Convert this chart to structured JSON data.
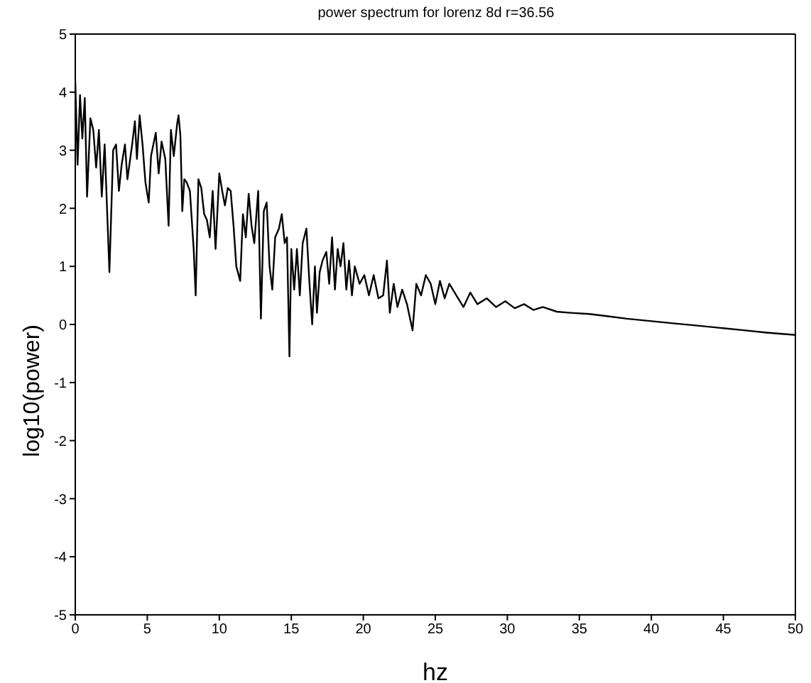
{
  "chart_data": {
    "type": "line",
    "title": "power spectrum for lorenz 8d r=36.56",
    "xlabel": "hz",
    "ylabel": "log10(power)",
    "xlim": [
      0,
      50
    ],
    "xticks": [
      0,
      5,
      10,
      15,
      20,
      25,
      30,
      35,
      40,
      45,
      50
    ],
    "ylim": [
      -5,
      5
    ],
    "yticks": [
      -5,
      -4,
      -3,
      -2,
      -1,
      0,
      1,
      2,
      3,
      4,
      5
    ],
    "grid": false,
    "legend": false,
    "marker": "none",
    "line_style": "solid",
    "series": [
      {
        "color": "#000000",
        "x": [
          0,
          0.16,
          0.33,
          0.49,
          0.66,
          0.82,
          1.05,
          1.25,
          1.45,
          1.64,
          1.84,
          2.04,
          2.37,
          2.63,
          2.83,
          3.03,
          3.22,
          3.45,
          3.62,
          3.95,
          4.14,
          4.28,
          4.47,
          4.67,
          4.87,
          5.1,
          5.26,
          5.59,
          5.79,
          5.99,
          6.25,
          6.48,
          6.64,
          6.84,
          7.07,
          7.17,
          7.3,
          7.43,
          7.57,
          7.73,
          7.96,
          8.22,
          8.36,
          8.55,
          8.75,
          8.95,
          9.14,
          9.34,
          9.54,
          9.74,
          10.0,
          10.2,
          10.39,
          10.59,
          10.79,
          10.99,
          11.18,
          11.45,
          11.64,
          11.84,
          12.04,
          12.24,
          12.43,
          12.7,
          12.89,
          13.09,
          13.29,
          13.49,
          13.68,
          13.88,
          14.14,
          14.34,
          14.54,
          14.7,
          14.87,
          15.0,
          15.2,
          15.39,
          15.59,
          15.79,
          16.05,
          16.25,
          16.45,
          16.64,
          16.78,
          16.97,
          17.17,
          17.43,
          17.63,
          17.83,
          18.03,
          18.22,
          18.42,
          18.62,
          18.82,
          19.01,
          19.21,
          19.41,
          19.74,
          20.07,
          20.39,
          20.72,
          21.05,
          21.38,
          21.64,
          21.84,
          22.11,
          22.37,
          22.7,
          23.03,
          23.42,
          23.68,
          24.01,
          24.34,
          24.68,
          25.0,
          25.32,
          25.65,
          25.97,
          26.46,
          26.95,
          27.43,
          27.92,
          28.57,
          29.21,
          29.86,
          30.51,
          31.16,
          31.81,
          32.46,
          33.43,
          34.4,
          35.7,
          37.0,
          38.3,
          39.9,
          41.5,
          43.2,
          44.8,
          46.4,
          48.0,
          50
        ],
        "values": [
          4.2,
          2.75,
          3.95,
          3.2,
          3.9,
          2.2,
          3.55,
          3.35,
          2.7,
          3.35,
          2.2,
          3.1,
          0.9,
          3.0,
          3.1,
          2.3,
          2.75,
          3.1,
          2.5,
          3.1,
          3.5,
          2.85,
          3.6,
          3.1,
          2.45,
          2.1,
          2.9,
          3.3,
          2.6,
          3.15,
          2.85,
          1.7,
          3.35,
          2.9,
          3.45,
          3.6,
          3.25,
          1.95,
          2.5,
          2.45,
          2.3,
          1.3,
          0.5,
          2.5,
          2.35,
          1.9,
          1.8,
          1.5,
          2.3,
          1.3,
          2.6,
          2.3,
          2.05,
          2.35,
          2.3,
          1.7,
          1.0,
          0.75,
          1.9,
          1.5,
          2.25,
          1.7,
          1.4,
          2.3,
          0.1,
          1.95,
          2.1,
          1.0,
          0.6,
          1.5,
          1.65,
          1.9,
          1.4,
          1.5,
          -0.55,
          1.3,
          0.6,
          1.3,
          0.5,
          1.4,
          1.65,
          0.75,
          0.0,
          1.0,
          0.2,
          0.9,
          1.1,
          1.25,
          0.7,
          1.5,
          0.6,
          1.3,
          1.0,
          1.4,
          0.6,
          1.1,
          0.5,
          1.0,
          0.7,
          0.85,
          0.5,
          0.85,
          0.45,
          0.5,
          1.1,
          0.2,
          0.7,
          0.3,
          0.6,
          0.35,
          -0.1,
          0.7,
          0.5,
          0.85,
          0.7,
          0.35,
          0.75,
          0.45,
          0.7,
          0.5,
          0.3,
          0.55,
          0.35,
          0.45,
          0.3,
          0.4,
          0.28,
          0.35,
          0.25,
          0.3,
          0.22,
          0.2,
          0.18,
          0.14,
          0.1,
          0.06,
          0.02,
          -0.02,
          -0.06,
          -0.1,
          -0.14,
          -0.18
        ]
      }
    ]
  }
}
